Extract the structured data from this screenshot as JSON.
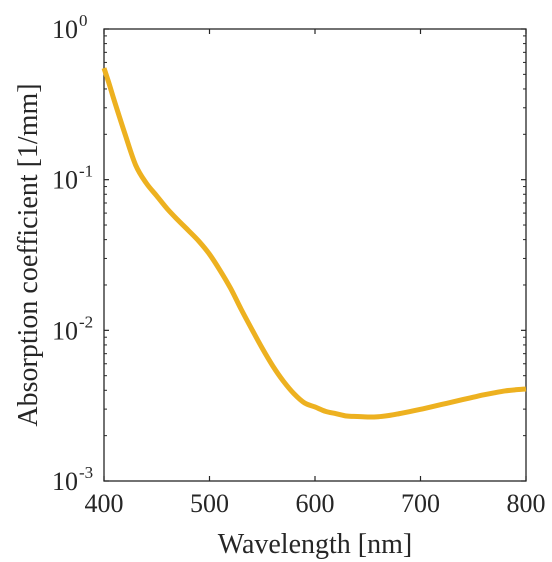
{
  "chart_data": {
    "type": "line",
    "title": "",
    "xlabel": "Wavelength [nm]",
    "ylabel": "Absorption coefficient [1/mm]",
    "xlim": [
      400,
      800
    ],
    "ylim": [
      0.001,
      1
    ],
    "yscale": "log",
    "grid": false,
    "legend": "none",
    "x_ticks": [
      {
        "value": 400,
        "label": "400"
      },
      {
        "value": 500,
        "label": "500"
      },
      {
        "value": 600,
        "label": "600"
      },
      {
        "value": 700,
        "label": "700"
      },
      {
        "value": 800,
        "label": "800"
      }
    ],
    "y_ticks": [
      {
        "value": 0.001,
        "base": "10",
        "exp": "-3"
      },
      {
        "value": 0.01,
        "base": "10",
        "exp": "-2"
      },
      {
        "value": 0.1,
        "base": "10",
        "exp": "-1"
      },
      {
        "value": 1,
        "base": "10",
        "exp": "0"
      }
    ],
    "series": [
      {
        "color": "#EDB120",
        "x": [
          400,
          405,
          410,
          420,
          430,
          440,
          450,
          460,
          470,
          480,
          490,
          500,
          510,
          520,
          530,
          540,
          550,
          560,
          570,
          580,
          590,
          600,
          610,
          620,
          630,
          640,
          650,
          655,
          660,
          670,
          680,
          690,
          700,
          710,
          720,
          730,
          740,
          750,
          760,
          770,
          780,
          790,
          800
        ],
        "y": [
          0.55,
          0.43,
          0.33,
          0.2,
          0.125,
          0.095,
          0.078,
          0.064,
          0.054,
          0.046,
          0.039,
          0.032,
          0.025,
          0.019,
          0.0138,
          0.0102,
          0.0076,
          0.0058,
          0.0046,
          0.0038,
          0.0033,
          0.0031,
          0.0029,
          0.0028,
          0.0027,
          0.00268,
          0.00266,
          0.00266,
          0.00267,
          0.00272,
          0.0028,
          0.00289,
          0.00299,
          0.0031,
          0.00322,
          0.00334,
          0.00347,
          0.0036,
          0.00373,
          0.00385,
          0.00396,
          0.00403,
          0.00408
        ]
      }
    ]
  }
}
